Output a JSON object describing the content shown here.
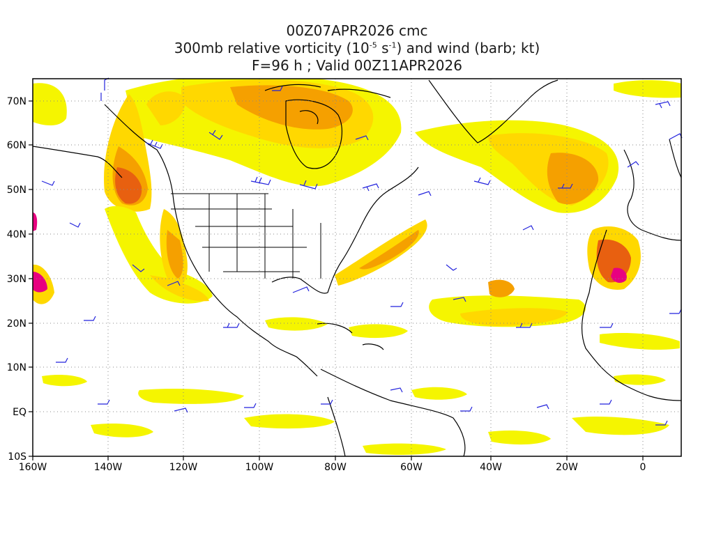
{
  "title": {
    "line1": "00Z07APR2026 cmc",
    "line2_pre": "300mb relative vorticity (10",
    "line2_exp1": "-5",
    "line2_mid": " s",
    "line2_exp2": "-1",
    "line2_post": ") and wind (barb; kt)",
    "line3": "F=96 h ; Valid 00Z11APR2026"
  },
  "axes": {
    "lon_labels": [
      "160W",
      "140W",
      "120W",
      "100W",
      "80W",
      "60W",
      "40W",
      "20W",
      "0"
    ],
    "lat_labels": [
      "70N",
      "60N",
      "50N",
      "40N",
      "30N",
      "20N",
      "10N",
      "EQ",
      "10S"
    ]
  },
  "colors": {
    "shade_low": "#f5f500",
    "shade_mid": "#ffd800",
    "shade_high": "#f5a000",
    "shade_strong": "#e86010",
    "shade_max": "#e80080",
    "barb": "#2222dd",
    "coast": "#000000",
    "grid": "#888888"
  }
}
